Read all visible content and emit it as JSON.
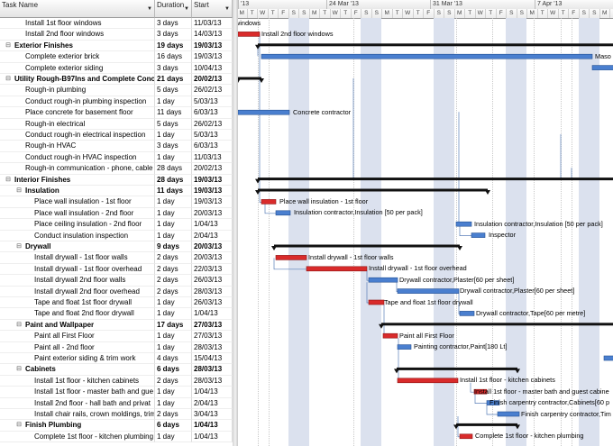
{
  "columns": {
    "task_name": "Task Name",
    "duration": "Duration",
    "start": "Start"
  },
  "timescale": {
    "weeks": [
      "'13",
      "24 Mar '13",
      "31 Mar '13",
      "7 Apr '13"
    ],
    "days": [
      "M",
      "T",
      "W",
      "T",
      "F",
      "S",
      "S",
      "M",
      "T",
      "W",
      "T",
      "F",
      "S",
      "S",
      "M",
      "T",
      "W",
      "T",
      "F",
      "S",
      "S",
      "M",
      "T",
      "W",
      "T",
      "F",
      "S",
      "S",
      "M",
      "T",
      "W",
      "T",
      "F",
      "S",
      "S",
      "M",
      "T"
    ]
  },
  "tasks": [
    {
      "name": "Install 1st floor windows",
      "duration": "3 days",
      "start": "11/03/13",
      "level": 1,
      "summary": false
    },
    {
      "name": "Install 2nd floor windows",
      "duration": "3 days",
      "start": "14/03/13",
      "level": 1,
      "summary": false
    },
    {
      "name": "Exterior Finishes",
      "duration": "19 days",
      "start": "19/03/13",
      "level": 0,
      "summary": true
    },
    {
      "name": "Complete exterior brick",
      "duration": "16 days",
      "start": "19/03/13",
      "level": 1,
      "summary": false
    },
    {
      "name": "Complete exterior siding",
      "duration": "3 days",
      "start": "10/04/13",
      "level": 1,
      "summary": false
    },
    {
      "name": "Utility Rough-B97Ins and Complete Concr",
      "duration": "21 days",
      "start": "20/02/13",
      "level": 0,
      "summary": true
    },
    {
      "name": "Rough-in plumbing",
      "duration": "5 days",
      "start": "26/02/13",
      "level": 1,
      "summary": false
    },
    {
      "name": "Conduct rough-in plumbing inspection",
      "duration": "1 day",
      "start": "5/03/13",
      "level": 1,
      "summary": false
    },
    {
      "name": "Place concrete for basement floor",
      "duration": "11 days",
      "start": "6/03/13",
      "level": 1,
      "summary": false
    },
    {
      "name": "Rough-in electrical",
      "duration": "5 days",
      "start": "26/02/13",
      "level": 1,
      "summary": false
    },
    {
      "name": "Conduct rough-in electrical inspection",
      "duration": "1 day",
      "start": "5/03/13",
      "level": 1,
      "summary": false
    },
    {
      "name": "Rough-in HVAC",
      "duration": "3 days",
      "start": "6/03/13",
      "level": 1,
      "summary": false
    },
    {
      "name": "Conduct rough-in HVAC inspection",
      "duration": "1 day",
      "start": "11/03/13",
      "level": 1,
      "summary": false
    },
    {
      "name": "Rough-in communication - phone, cable",
      "duration": "28 days",
      "start": "20/02/13",
      "level": 1,
      "summary": false
    },
    {
      "name": "Interior Finishes",
      "duration": "28 days",
      "start": "19/03/13",
      "level": 0,
      "summary": true
    },
    {
      "name": "Insulation",
      "duration": "11 days",
      "start": "19/03/13",
      "level": 1,
      "summary": true
    },
    {
      "name": "Place wall insulation - 1st floor",
      "duration": "1 day",
      "start": "19/03/13",
      "level": 2,
      "summary": false
    },
    {
      "name": "Place wall insulation - 2nd floor",
      "duration": "1 day",
      "start": "20/03/13",
      "level": 2,
      "summary": false
    },
    {
      "name": "Place ceiling insulation - 2nd floor",
      "duration": "1 day",
      "start": "1/04/13",
      "level": 2,
      "summary": false
    },
    {
      "name": "Conduct insulation inspection",
      "duration": "1 day",
      "start": "2/04/13",
      "level": 2,
      "summary": false
    },
    {
      "name": "Drywall",
      "duration": "9 days",
      "start": "20/03/13",
      "level": 1,
      "summary": true
    },
    {
      "name": "Install drywall - 1st floor walls",
      "duration": "2 days",
      "start": "20/03/13",
      "level": 2,
      "summary": false
    },
    {
      "name": "Install drywall - 1st floor overhead",
      "duration": "2 days",
      "start": "22/03/13",
      "level": 2,
      "summary": false
    },
    {
      "name": "Install drywall 2nd floor walls",
      "duration": "2 days",
      "start": "26/03/13",
      "level": 2,
      "summary": false
    },
    {
      "name": "Install drywall 2nd floor overhead",
      "duration": "2 days",
      "start": "28/03/13",
      "level": 2,
      "summary": false
    },
    {
      "name": "Tape and float 1st floor drywall",
      "duration": "1 day",
      "start": "26/03/13",
      "level": 2,
      "summary": false
    },
    {
      "name": "Tape and float 2nd floor drywall",
      "duration": "1 day",
      "start": "1/04/13",
      "level": 2,
      "summary": false
    },
    {
      "name": "Paint and Wallpaper",
      "duration": "17 days",
      "start": "27/03/13",
      "level": 1,
      "summary": true
    },
    {
      "name": "Paint all First Floor",
      "duration": "1 day",
      "start": "27/03/13",
      "level": 2,
      "summary": false
    },
    {
      "name": "Paint all - 2nd floor",
      "duration": "1 day",
      "start": "28/03/13",
      "level": 2,
      "summary": false
    },
    {
      "name": "Paint exterior siding & trim work",
      "duration": "4 days",
      "start": "15/04/13",
      "level": 2,
      "summary": false
    },
    {
      "name": "Cabinets",
      "duration": "6 days",
      "start": "28/03/13",
      "level": 1,
      "summary": true
    },
    {
      "name": "Install 1st floor - kitchen cabinets",
      "duration": "2 days",
      "start": "28/03/13",
      "level": 2,
      "summary": false
    },
    {
      "name": "Install 1st floor - master bath and gue",
      "duration": "1 day",
      "start": "1/04/13",
      "level": 2,
      "summary": false
    },
    {
      "name": "Install 2nd floor - hall bath and privat",
      "duration": "1 day",
      "start": "2/04/13",
      "level": 2,
      "summary": false
    },
    {
      "name": "Install chair rails, crown moldings, trim",
      "duration": "2 days",
      "start": "3/04/13",
      "level": 2,
      "summary": false
    },
    {
      "name": "Finish Plumbing",
      "duration": "6 days",
      "start": "1/04/13",
      "level": 1,
      "summary": true
    },
    {
      "name": "Complete 1st floor - kitchen plumbing",
      "duration": "1 day",
      "start": "1/04/13",
      "level": 2,
      "summary": false
    }
  ],
  "bar_labels": [
    "windows",
    "Install 2nd floor windows",
    "Maso",
    "Concrete contractor",
    "Place wall insulation - 1st floor",
    "Insulation contractor,Insulation [50 per pack]",
    "Insulation contractor,Insulation [50 per pack]",
    "Inspector",
    "Install drywall - 1st floor walls",
    "Install drywall - 1st floor overhead",
    "Drywall contractor,Plaster[60 per sheet]",
    "Drywall contractor,Plaster[60 per sheet]",
    "Tape and float 1st floor drywall",
    "Drywall contractor,Tape[60 per metre]",
    "Paint all First Floor",
    "Painting contractor,Paint[180 Lt]",
    "Install 1st floor - kitchen cabinets",
    "Install 1st floor - master bath and guest cabine",
    "Finish carpentry contractor,Cabinets[60 p",
    "Finish carpentry contractor,Tim",
    "Complete 1st floor - kitchen plumbing"
  ],
  "colors": {
    "critical_bar": "#d92b2b",
    "normal_bar": "#4a7fcf",
    "summary_bar": "#111111",
    "weekend_shade": "#dbe1ee",
    "link_line": "#5a7fb8",
    "header_selected": "#f5c34a"
  }
}
